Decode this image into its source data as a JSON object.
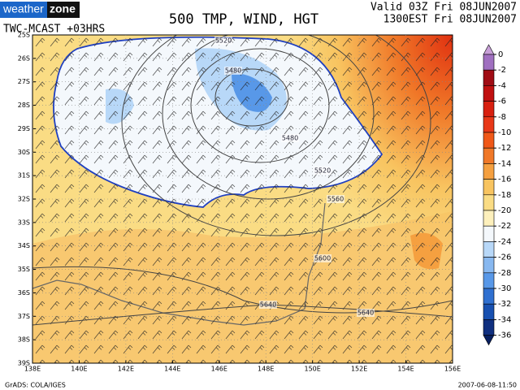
{
  "header": {
    "logo_left": "weather",
    "logo_right": "zone",
    "title": "500 TMP, WIND, HGT",
    "valid": "Valid 03Z Fri 08JUN2007",
    "local_time": "1300EST Fri 08JUN2007",
    "model": "TWC-MCAST +03HRS"
  },
  "map": {
    "lat_labels": [
      "25S",
      "26S",
      "27S",
      "28S",
      "29S",
      "30S",
      "31S",
      "32S",
      "33S",
      "34S",
      "35S",
      "36S",
      "37S",
      "38S",
      "39S"
    ],
    "lon_labels": [
      "138E",
      "140E",
      "142E",
      "144E",
      "146E",
      "148E",
      "150E",
      "152E",
      "154E",
      "156E"
    ],
    "contour_labels": [
      5520,
      5480,
      5480,
      5520,
      5560,
      5600,
      5640,
      5640
    ]
  },
  "colorbar": {
    "levels": [
      0,
      -2,
      -4,
      -6,
      -8,
      -10,
      -12,
      -14,
      -16,
      -18,
      -20,
      -22,
      -24,
      -26,
      -28,
      -30,
      -32,
      -34,
      -36
    ],
    "colors": [
      "#c8a0d8",
      "#a070c0",
      "#a00c14",
      "#c01010",
      "#d82010",
      "#e83818",
      "#f05818",
      "#f07828",
      "#f5a040",
      "#f8c460",
      "#fadc84",
      "#fdf0bc",
      "#f4f8fc",
      "#b8d8f8",
      "#88b8f0",
      "#5898e8",
      "#3070d0",
      "#1850b0",
      "#103080",
      "#082060"
    ]
  },
  "footer": {
    "credit": "GrADS: COLA/IGES",
    "timestamp": "2007-06-08-11:50"
  }
}
